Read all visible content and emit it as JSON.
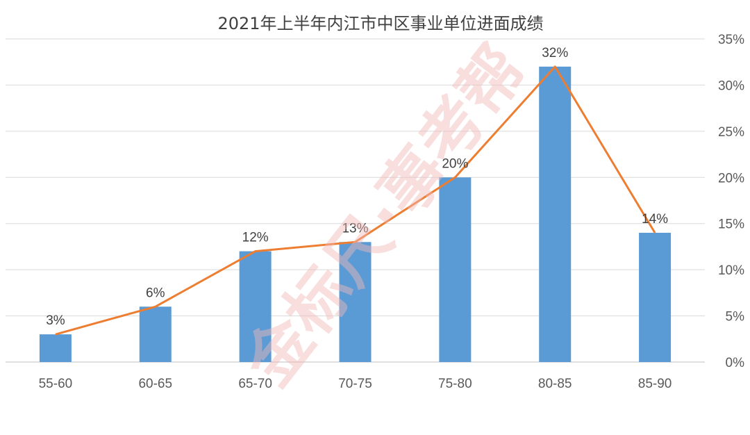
{
  "chart_data": {
    "type": "bar",
    "title": "2021年上半年内江市中区事业单位进面成绩",
    "categories": [
      "55-60",
      "60-65",
      "65-70",
      "70-75",
      "75-80",
      "80-85",
      "85-90"
    ],
    "series": [
      {
        "type": "bar",
        "values": [
          3,
          6,
          12,
          13,
          20,
          32,
          14
        ],
        "color": "#5b9bd5"
      },
      {
        "type": "line",
        "values": [
          3,
          6,
          12,
          13,
          20,
          32,
          14
        ],
        "color": "#ed7d31"
      }
    ],
    "data_labels": [
      "3%",
      "6%",
      "12%",
      "13%",
      "20%",
      "32%",
      "14%"
    ],
    "yaxis": {
      "position": "right",
      "range": [
        0,
        35
      ],
      "tick_labels": [
        "0%",
        "5%",
        "10%",
        "15%",
        "20%",
        "25%",
        "30%",
        "35%"
      ]
    },
    "grid": true
  },
  "watermark": "金标尺·事考帮"
}
